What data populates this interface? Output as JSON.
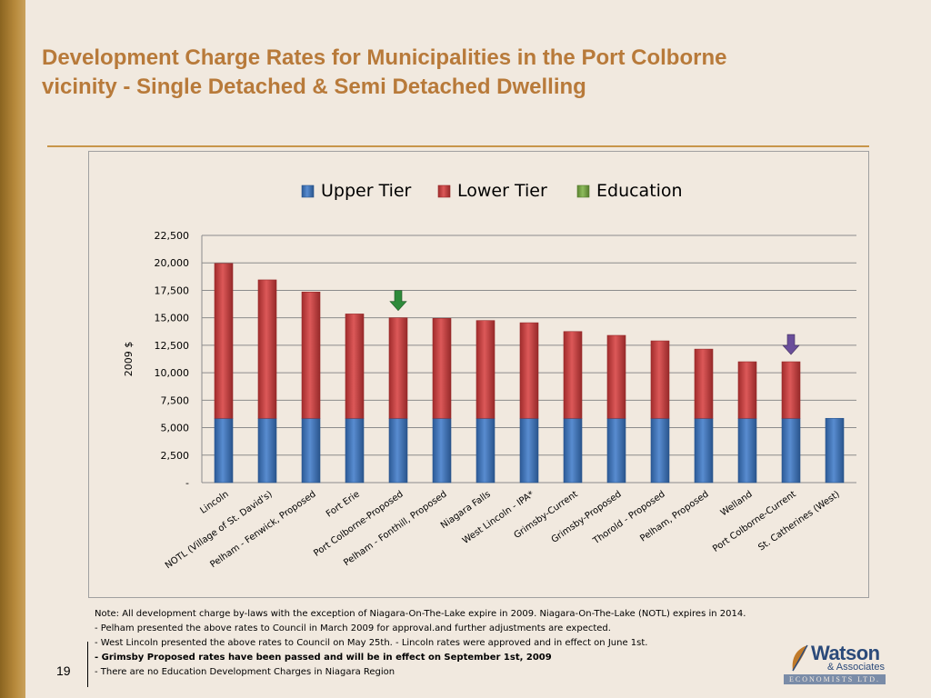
{
  "slide": {
    "title_line1": "Development Charge Rates for Municipalities in the Port Colborne",
    "title_line2": "vicinity - Single Detached  & Semi Detached Dwelling",
    "page_number": "19",
    "accent_color": "#b87a3a"
  },
  "notes": [
    {
      "text": "Note: All development  charge by-laws  with the exception of Niagara-On-The-Lake expire in 2009.    Niagara-On-The-Lake (NOTL) expires in 2014.",
      "bold": false
    },
    {
      "text": "- Pelham  presented the above rates to Council in March 2009 for approval.and further adjustments are expected.",
      "bold": false
    },
    {
      "text": "- West Lincoln   presented the above rates to Council on May 25th.    - Lincoln  rates were approved  and in effect on June 1st.",
      "bold": false
    },
    {
      "text": "- Grimsby Proposed rates have been passed and will  be in effect on September 1st, 2009",
      "bold": true
    },
    {
      "text": "- There are no Education Development Charges in Niagara Region",
      "bold": false
    }
  ],
  "logo": {
    "name": "Watson",
    "sub": "& Associates",
    "tag": "ECONOMISTS LTD."
  },
  "chart_data": {
    "type": "bar",
    "stacked": true,
    "title": "",
    "xlabel": "",
    "ylabel": "2009 $",
    "ylim": [
      0,
      22500
    ],
    "yticks": [
      0,
      2500,
      5000,
      7500,
      10000,
      12500,
      15000,
      17500,
      20000,
      22500
    ],
    "ytick_labels": [
      "-",
      "2,500",
      "5,000",
      "7,500",
      "10,000",
      "12,500",
      "15,000",
      "17,500",
      "20,000",
      "22,500"
    ],
    "grid": true,
    "legend_position": "top",
    "categories": [
      "Lincoln",
      "NOTL (Village of St. David's)",
      "Pelham - Fenwick, Proposed",
      "Fort Erie",
      "Port Colborne-Proposed",
      "Pelham - Fonthill, Proposed",
      "Niagara Falls",
      "West Lincoln -  IPA*",
      "Grimsby-Current",
      "Grimsby-Proposed",
      "Thorold - Proposed",
      "Pelham, Proposed",
      "Welland",
      "Port Colborne-Current",
      "St. Catherines (West)"
    ],
    "series": [
      {
        "name": "Upper Tier",
        "color": "#3a78c8",
        "values": [
          5850,
          5850,
          5850,
          5850,
          5850,
          5850,
          5850,
          5850,
          5850,
          5850,
          5850,
          5850,
          5850,
          5850,
          5850
        ]
      },
      {
        "name": "Lower Tier",
        "color": "#d63a3a",
        "values": [
          14100,
          12600,
          11500,
          9500,
          9150,
          9100,
          8900,
          8700,
          7900,
          7550,
          7050,
          6300,
          5150,
          5150,
          0
        ]
      },
      {
        "name": "Education",
        "color": "#7ab040",
        "values": [
          0,
          0,
          0,
          0,
          0,
          0,
          0,
          0,
          0,
          0,
          0,
          0,
          0,
          0,
          0
        ]
      }
    ],
    "markers": [
      {
        "category": "Port Colborne-Proposed",
        "color": "#2e8a3a",
        "icon": "down-arrow-icon"
      },
      {
        "category": "Port Colborne-Current",
        "color": "#6a4e9a",
        "icon": "down-arrow-icon"
      }
    ]
  }
}
